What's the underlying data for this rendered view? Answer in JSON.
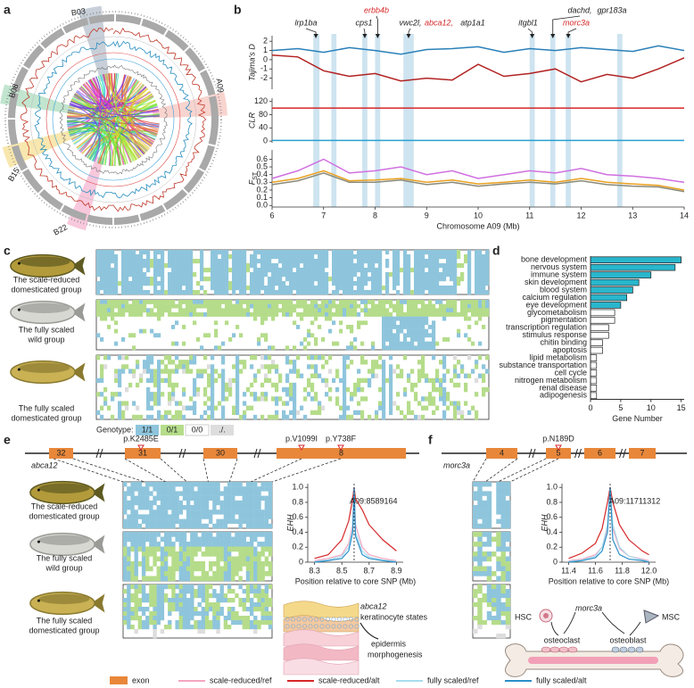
{
  "figure": {
    "panel_labels": [
      "a",
      "b",
      "c",
      "d",
      "e",
      "f"
    ],
    "circos": {
      "chromosomes": [
        "B03",
        "B08",
        "B15",
        "B22",
        "A09"
      ]
    },
    "genes_b": [
      {
        "text": "lrp1ba",
        "color": "#222222"
      },
      {
        "text": "cps1",
        "color": "#222222"
      },
      {
        "text": "erbb4b",
        "color": "#d62728"
      },
      {
        "text": "vwc2l,",
        "color": "#222222"
      },
      {
        "text": "abca12,",
        "color": "#d62728"
      },
      {
        "text": "atp1a1",
        "color": "#222222"
      },
      {
        "text": "itgbl1",
        "color": "#222222"
      },
      {
        "text": "dachd,",
        "color": "#222222"
      },
      {
        "text": "gpr183a",
        "color": "#222222"
      },
      {
        "text": "morc3a",
        "color": "#d62728"
      }
    ],
    "groups": [
      [
        "The scale-reduced",
        "domesticated group"
      ],
      [
        "The fully scaled",
        "wild group"
      ],
      [
        "The fully scaled",
        "domesticated group"
      ]
    ],
    "genotype": {
      "title": "Genotype:",
      "states": [
        {
          "label": "1/1",
          "color": "#8ec5dc"
        },
        {
          "label": "0/1",
          "color": "#b5dc8a"
        },
        {
          "label": "0/0",
          "color": "#ffffff"
        },
        {
          "label": "./.",
          "color": "#dddddd"
        }
      ]
    },
    "e": {
      "gene": "abca12",
      "exons": [
        "32",
        "31",
        "30",
        "8"
      ],
      "variants": [
        "p.K2485E",
        "p.V1099I",
        "p.Y738F"
      ],
      "illustration": {
        "gene": "abca12",
        "state": "keratinocyte states",
        "result": [
          "epidermis",
          "morphogenesis"
        ]
      }
    },
    "f": {
      "gene": "morc3a",
      "exons": [
        "4",
        "5",
        "6",
        "7"
      ],
      "variants": [
        "p.N189D"
      ],
      "illustration": {
        "hsc": "HSC",
        "gene": "morc3a",
        "msc": "MSC",
        "osteoclast": "osteoclast",
        "osteoblast": "osteoblast"
      }
    },
    "legend": {
      "exon": {
        "label": "exon",
        "color": "#e8873a"
      }
    }
  },
  "chart_data": [
    {
      "type": "line",
      "ylabel": "Tajima's D",
      "xlim": [
        6,
        14
      ],
      "ylim": [
        -3.2,
        2.6
      ],
      "yticks": [
        -2,
        -1,
        0,
        1,
        2
      ],
      "highlights": [
        [
          6.8,
          6.92
        ],
        [
          7.15,
          7.25
        ],
        [
          7.75,
          7.85
        ],
        [
          8.0,
          8.1
        ],
        [
          8.55,
          8.75
        ],
        [
          11.0,
          11.1
        ],
        [
          11.4,
          11.5
        ],
        [
          11.7,
          11.8
        ],
        [
          12.7,
          12.8
        ]
      ],
      "x": [
        6,
        6.5,
        7,
        7.5,
        8,
        8.5,
        9,
        9.5,
        10,
        10.5,
        11,
        11.5,
        12,
        12.5,
        13,
        13.5,
        14
      ],
      "series": [
        {
          "color": "#2a80b9",
          "values": [
            1,
            1.2,
            0.8,
            1.3,
            1.0,
            0.6,
            1.1,
            1.2,
            1.4,
            0.8,
            1.2,
            1.0,
            1.3,
            1.1,
            0.9,
            1.5,
            1.0
          ]
        },
        {
          "color": "#b22222",
          "values": [
            0.5,
            0.3,
            -1.2,
            -1.8,
            -1.5,
            -2.3,
            -2.0,
            -2.2,
            -0.5,
            -1.8,
            -1.5,
            -1.0,
            -2.4,
            -1.6,
            -2.0,
            -1.0,
            0.2
          ]
        }
      ]
    },
    {
      "type": "line",
      "ylabel": "CLR",
      "xlim": [
        6,
        14
      ],
      "ylim": [
        -5,
        130
      ],
      "yticks": [
        0,
        40,
        80,
        120
      ],
      "x": [
        6,
        14
      ],
      "series": [
        {
          "color": "#d62728",
          "values": [
            100,
            100
          ]
        },
        {
          "color": "#2aa0d0",
          "values": [
            2,
            2
          ]
        }
      ]
    },
    {
      "type": "line",
      "ylabel": "F",
      "ylabel_sub": "ST",
      "xlabel": "Chromosome A09 (Mb)",
      "xlim": [
        6,
        14
      ],
      "ylim": [
        -0.02,
        0.72
      ],
      "yticks": [
        {
          "value": 0,
          "label": "0.0"
        },
        0.1,
        0.2,
        0.3,
        0.4,
        0.5,
        0.6
      ],
      "xticks": [
        6,
        7,
        8,
        9,
        10,
        11,
        12,
        13,
        14
      ],
      "x": [
        6,
        6.5,
        7,
        7.5,
        8,
        8.5,
        9,
        9.5,
        10,
        10.5,
        11,
        11.5,
        12,
        12.5,
        13,
        13.5,
        14
      ],
      "series": [
        {
          "color": "#d070e0",
          "values": [
            0.35,
            0.45,
            0.6,
            0.42,
            0.45,
            0.5,
            0.4,
            0.45,
            0.35,
            0.4,
            0.45,
            0.42,
            0.48,
            0.4,
            0.38,
            0.35,
            0.3
          ]
        },
        {
          "color": "#e8a020",
          "values": [
            0.3,
            0.35,
            0.45,
            0.32,
            0.33,
            0.35,
            0.3,
            0.33,
            0.28,
            0.3,
            0.33,
            0.3,
            0.35,
            0.3,
            0.28,
            0.26,
            0.2
          ]
        },
        {
          "color": "#8a8a7a",
          "values": [
            0.27,
            0.32,
            0.42,
            0.3,
            0.3,
            0.33,
            0.27,
            0.3,
            0.25,
            0.28,
            0.3,
            0.28,
            0.32,
            0.27,
            0.25,
            0.24,
            0.18
          ]
        }
      ]
    },
    {
      "type": "bar",
      "orientation": "horizontal",
      "xlabel": "Gene Number",
      "xlim": [
        0,
        15.5
      ],
      "xticks": [
        0,
        5,
        10,
        15
      ],
      "categories": [
        "bone development",
        "nervous system",
        "immune system",
        "skin development",
        "blood system",
        "calcium regulation",
        "eye development",
        "glycometabolism",
        "pigmentation",
        "transcription regulation",
        "stimulus response",
        "chitin binding",
        "apoptosis",
        "lipid metabolism",
        "substance transportation",
        "cell cycle",
        "nitrogen metabolism",
        "renal disease",
        "adipogenesis"
      ],
      "values": [
        15,
        14,
        10,
        8,
        7,
        6,
        5,
        4,
        4,
        3,
        3,
        2,
        2,
        1,
        1,
        1,
        1,
        1,
        1
      ],
      "colors": [
        "#29b6cc",
        "#29b6cc",
        "#29b6cc",
        "#29b6cc",
        "#29b6cc",
        "#29b6cc",
        "#29b6cc",
        "#ffffff",
        "#ffffff",
        "#ffffff",
        "#ffffff",
        "#ffffff",
        "#ffffff",
        "#ffffff",
        "#ffffff",
        "#ffffff",
        "#ffffff",
        "#ffffff",
        "#ffffff"
      ]
    },
    {
      "type": "line",
      "ylabel": "EHH",
      "annotation": "A09:8589164",
      "xlabel": "Position relative to core SNP (Mb)",
      "xlim": [
        8.25,
        8.95
      ],
      "ylim": [
        0,
        1.05
      ],
      "xticks": [
        8.3,
        8.5,
        8.7,
        8.9
      ],
      "yticks": [
        0,
        0.2,
        0.4,
        0.6,
        0.8,
        {
          "value": 1,
          "label": "1.0"
        }
      ],
      "x": [
        8.3,
        8.4,
        8.5,
        8.55,
        8.58,
        8.59,
        8.6,
        8.65,
        8.7,
        8.8,
        8.9
      ],
      "series": [
        {
          "name": "scale-reduced/ref",
          "color": "#f4a6c0",
          "values": [
            0.02,
            0.05,
            0.1,
            0.25,
            0.5,
            1.0,
            0.5,
            0.2,
            0.1,
            0.05,
            0.02
          ]
        },
        {
          "name": "scale-reduced/alt",
          "color": "#d62728",
          "values": [
            0.05,
            0.1,
            0.3,
            0.55,
            0.85,
            1.0,
            0.85,
            0.7,
            0.5,
            0.3,
            0.15
          ]
        },
        {
          "name": "fully scaled/ref",
          "color": "#a8dcef",
          "values": [
            0.01,
            0.03,
            0.08,
            0.2,
            0.45,
            1.0,
            0.4,
            0.15,
            0.07,
            0.03,
            0.01
          ]
        },
        {
          "name": "fully scaled/alt",
          "color": "#2a8fc8",
          "values": [
            0,
            0.02,
            0.05,
            0.15,
            0.4,
            1.0,
            0.35,
            0.1,
            0.05,
            0.02,
            0
          ]
        }
      ]
    },
    {
      "type": "line",
      "ylabel": "EHH",
      "annotation": "A09:11711312",
      "xlabel": "Position relative to core SNP (Mb)",
      "xlim": [
        11.35,
        12.05
      ],
      "ylim": [
        0,
        1.05
      ],
      "xticks": [
        11.4,
        11.6,
        11.8,
        {
          "value": 12,
          "label": "12.0"
        }
      ],
      "yticks": [
        0,
        0.2,
        0.4,
        0.6,
        0.8,
        {
          "value": 1,
          "label": "1.0"
        }
      ],
      "x": [
        11.4,
        11.5,
        11.6,
        11.65,
        11.69,
        11.71,
        11.73,
        11.78,
        11.85,
        11.95,
        12.0
      ],
      "series": [
        {
          "color": "#f4a6c0",
          "values": [
            0.02,
            0.04,
            0.1,
            0.2,
            0.45,
            1.0,
            0.45,
            0.18,
            0.08,
            0.04,
            0.02
          ]
        },
        {
          "color": "#d62728",
          "values": [
            0.05,
            0.12,
            0.25,
            0.45,
            0.8,
            1.0,
            0.8,
            0.5,
            0.3,
            0.15,
            0.1
          ]
        },
        {
          "color": "#a8dcef",
          "values": [
            0.01,
            0.03,
            0.08,
            0.2,
            0.5,
            1.0,
            0.5,
            0.2,
            0.08,
            0.03,
            0.01
          ]
        },
        {
          "color": "#2a8fc8",
          "values": [
            0,
            0.02,
            0.06,
            0.15,
            0.4,
            1.0,
            0.3,
            0.1,
            0.04,
            0.02,
            0
          ]
        }
      ]
    }
  ]
}
